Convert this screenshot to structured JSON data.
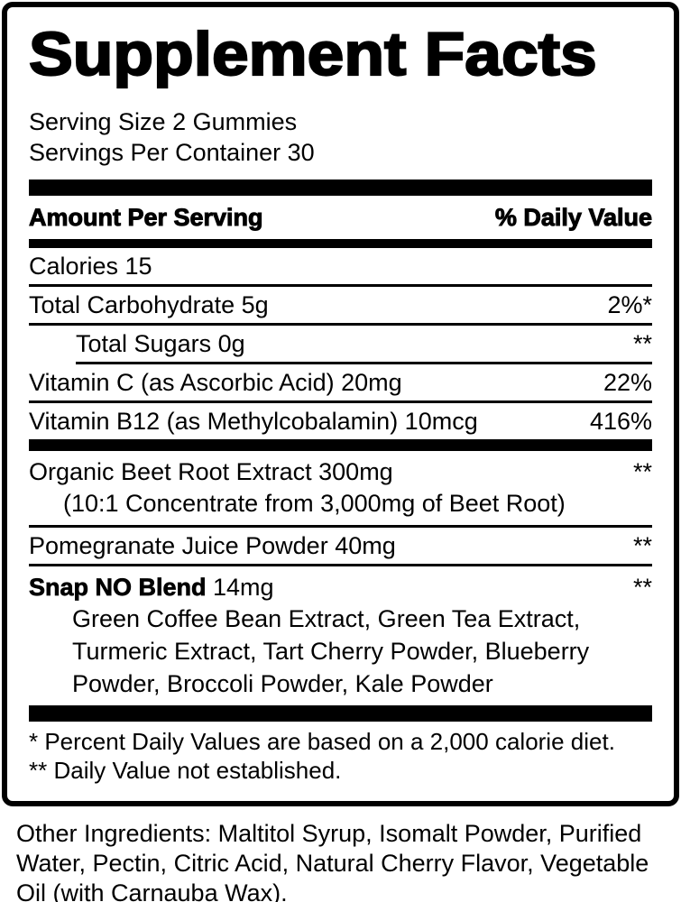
{
  "colors": {
    "ink": "#000000",
    "paper": "#ffffff"
  },
  "label": {
    "title": "Supplement Facts",
    "serving_size": "Serving Size 2 Gummies",
    "servings_per_container": "Servings Per Container 30",
    "header": {
      "amount": "Amount Per Serving",
      "daily_value": "% Daily Value"
    },
    "rows": [
      {
        "name": "Calories 15",
        "value": ""
      },
      {
        "name": "Total Carbohydrate 5g",
        "value": "2%*"
      },
      {
        "name": "Total Sugars 0g",
        "value": "**"
      },
      {
        "name": "Vitamin C (as Ascorbic Acid) 20mg",
        "value": "22%"
      },
      {
        "name": "Vitamin B12 (as Methylcobalamin) 10mcg",
        "value": "416%"
      },
      {
        "name": "Organic Beet Root Extract 300mg",
        "value": "**",
        "detail": "(10:1 Concentrate from 3,000mg of Beet Root)"
      },
      {
        "name": "Pomegranate Juice Powder 40mg",
        "value": "**"
      },
      {
        "name_bold": "Snap NO Blend",
        "name_rest": " 14mg",
        "value": "**",
        "detail": "Green Coffee Bean Extract, Green Tea Extract, Turmeric Extract, Tart Cherry Powder, Blueberry Powder, Broccoli Powder, Kale Powder"
      }
    ],
    "footnotes": [
      "* Percent Daily Values are based on a 2,000 calorie diet.",
      "** Daily Value not established."
    ]
  },
  "other_ingredients": "Other Ingredients: Maltitol Syrup, Isomalt Powder, Purified Water, Pectin, Citric Acid, Natural Cherry Flavor, Vegetable Oil (with Carnauba Wax)."
}
